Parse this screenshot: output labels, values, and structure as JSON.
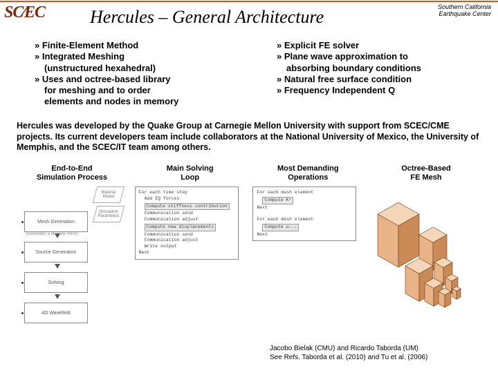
{
  "brand": {
    "logo_text": "SC/EC",
    "subtitle_line1": "Southern California",
    "subtitle_line2": "Earthquake Center"
  },
  "title": "Hercules – General Architecture",
  "bullets_left": [
    {
      "text": "Finite-Element Method",
      "sub": false
    },
    {
      "text": "Integrated Meshing",
      "sub": false
    },
    {
      "text": "(unstructured hexahedral)",
      "sub": true
    },
    {
      "text": "Uses and octree-based library",
      "sub": false
    },
    {
      "text": "for meshing and to order",
      "sub": true
    },
    {
      "text": "elements and nodes in memory",
      "sub": true
    }
  ],
  "bullets_right": [
    {
      "text": "Explicit FE solver",
      "sub": false
    },
    {
      "text": "Plane wave approximation to",
      "sub": false
    },
    {
      "text": "absorbing boundary conditions",
      "sub": true
    },
    {
      "text": "Natural free surface condition",
      "sub": false
    },
    {
      "text": "Frequency Independent Q",
      "sub": false
    }
  ],
  "paragraph": "Hercules was developed by the Quake Group at Carnegie Mellon University with support from SCEC/CME projects. Its current developers team include collaborators at the National University of Mexico, the University of Memphis, and the SCEC/IT team among others.",
  "figures": {
    "col1": {
      "title_l1": "End-to-End",
      "title_l2": "Simulation Process",
      "stages": [
        "Mesh Generation",
        "Source Generation",
        "Solving",
        "4D Wavefield"
      ],
      "stage_caption": "(Generates a discrete mesh)",
      "io": [
        "Material Model",
        "Simulation Parameters"
      ]
    },
    "col2": {
      "title_l1": "Main Solving",
      "title_l2": "Loop",
      "lines": [
        "For each time step",
        "Add EQ forces",
        "Compute stiffness contribution",
        "Communication send",
        "Communication adjust",
        "Compute new displacements",
        "Communication send",
        "Communication adjust",
        "Write output",
        "Next"
      ],
      "highlight_idx": [
        2,
        5
      ]
    },
    "col3": {
      "title_l1": "Most Demanding",
      "title_l2": "Operations",
      "lines": [
        "For each mesh element",
        "Compute Kᵉ",
        "Next",
        "",
        "For each mesh element",
        "Compute uₙ₊₁",
        "Next"
      ],
      "highlight_idx": [
        1,
        5
      ]
    },
    "col4": {
      "title_l1": "Octree-Based",
      "title_l2": "FE Mesh"
    }
  },
  "credits": {
    "line1": "Jacobo Bielak (CMU) and Ricardo Taborda (UM)",
    "line2": "See Refs. Taborda et al. (2010) and Tu et al. (2006)"
  },
  "colors": {
    "rule": "#c75d12",
    "logo": "#7a2b0c",
    "cube_face_light": "#f4d6b8",
    "cube_face_mid": "#e8b487",
    "cube_face_dark": "#c98a56",
    "cube_edge": "#6b3a16"
  },
  "typography": {
    "title_fontsize": 26,
    "bullet_fontsize": 13,
    "body_fontsize": 12.5,
    "fig_title_fontsize": 11,
    "credits_fontsize": 10
  }
}
